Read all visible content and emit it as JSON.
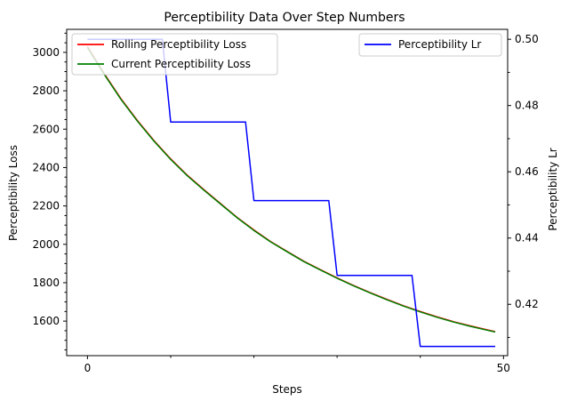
{
  "chart_data": {
    "type": "line",
    "title": "Perceptibility Data Over Step Numbers",
    "xlabel": "Steps",
    "ylabel_left": "Perceptibility Loss",
    "ylabel_right": "Perceptibility Lr",
    "xlim": [
      -2.5,
      50.5
    ],
    "ylim_left": [
      1420,
      3120
    ],
    "ylim_right": [
      0.4045,
      0.503
    ],
    "x_ticks": [
      0,
      50
    ],
    "x_minor_ticks": [
      10,
      20,
      30,
      40
    ],
    "yticks_left": [
      1600,
      1800,
      2000,
      2200,
      2400,
      2600,
      2800,
      3000
    ],
    "yticks_right": [
      0.42,
      0.44,
      0.46,
      0.48,
      0.5
    ],
    "grid": false,
    "legend_left": {
      "placement": "upper-left",
      "entries": [
        "Rolling Perceptibility Loss",
        "Current Perceptibility Loss"
      ]
    },
    "legend_right": {
      "placement": "upper-right",
      "entries": [
        "Perceptibility Lr"
      ]
    },
    "x": [
      0,
      2,
      4,
      6,
      8,
      10,
      12,
      14,
      16,
      18,
      20,
      22,
      24,
      26,
      28,
      30,
      32,
      34,
      36,
      38,
      40,
      42,
      44,
      46,
      48,
      49
    ],
    "series": [
      {
        "name": "Rolling Perceptibility Loss",
        "axis": "left",
        "color": "#ff0000",
        "values": [
          3030,
          2890,
          2760,
          2645,
          2540,
          2445,
          2360,
          2285,
          2212,
          2140,
          2075,
          2015,
          1963,
          1912,
          1868,
          1825,
          1785,
          1748,
          1713,
          1680,
          1650,
          1622,
          1597,
          1575,
          1555,
          1545
        ]
      },
      {
        "name": "Current Perceptibility Loss",
        "axis": "left",
        "color": "#008000",
        "values": [
          3025,
          2886,
          2757,
          2642,
          2537,
          2442,
          2357,
          2282,
          2210,
          2138,
          2072,
          2013,
          1961,
          1910,
          1866,
          1823,
          1783,
          1746,
          1711,
          1678,
          1648,
          1620,
          1595,
          1573,
          1553,
          1543
        ]
      },
      {
        "name": "Perceptibility Lr",
        "axis": "right",
        "color": "#0000ff",
        "step_x": [
          0,
          9,
          10,
          19,
          20,
          29,
          30,
          39,
          40,
          49
        ],
        "step_values": [
          0.5,
          0.5,
          0.475,
          0.475,
          0.4513,
          0.4513,
          0.4287,
          0.4287,
          0.4073,
          0.4073
        ]
      }
    ]
  }
}
